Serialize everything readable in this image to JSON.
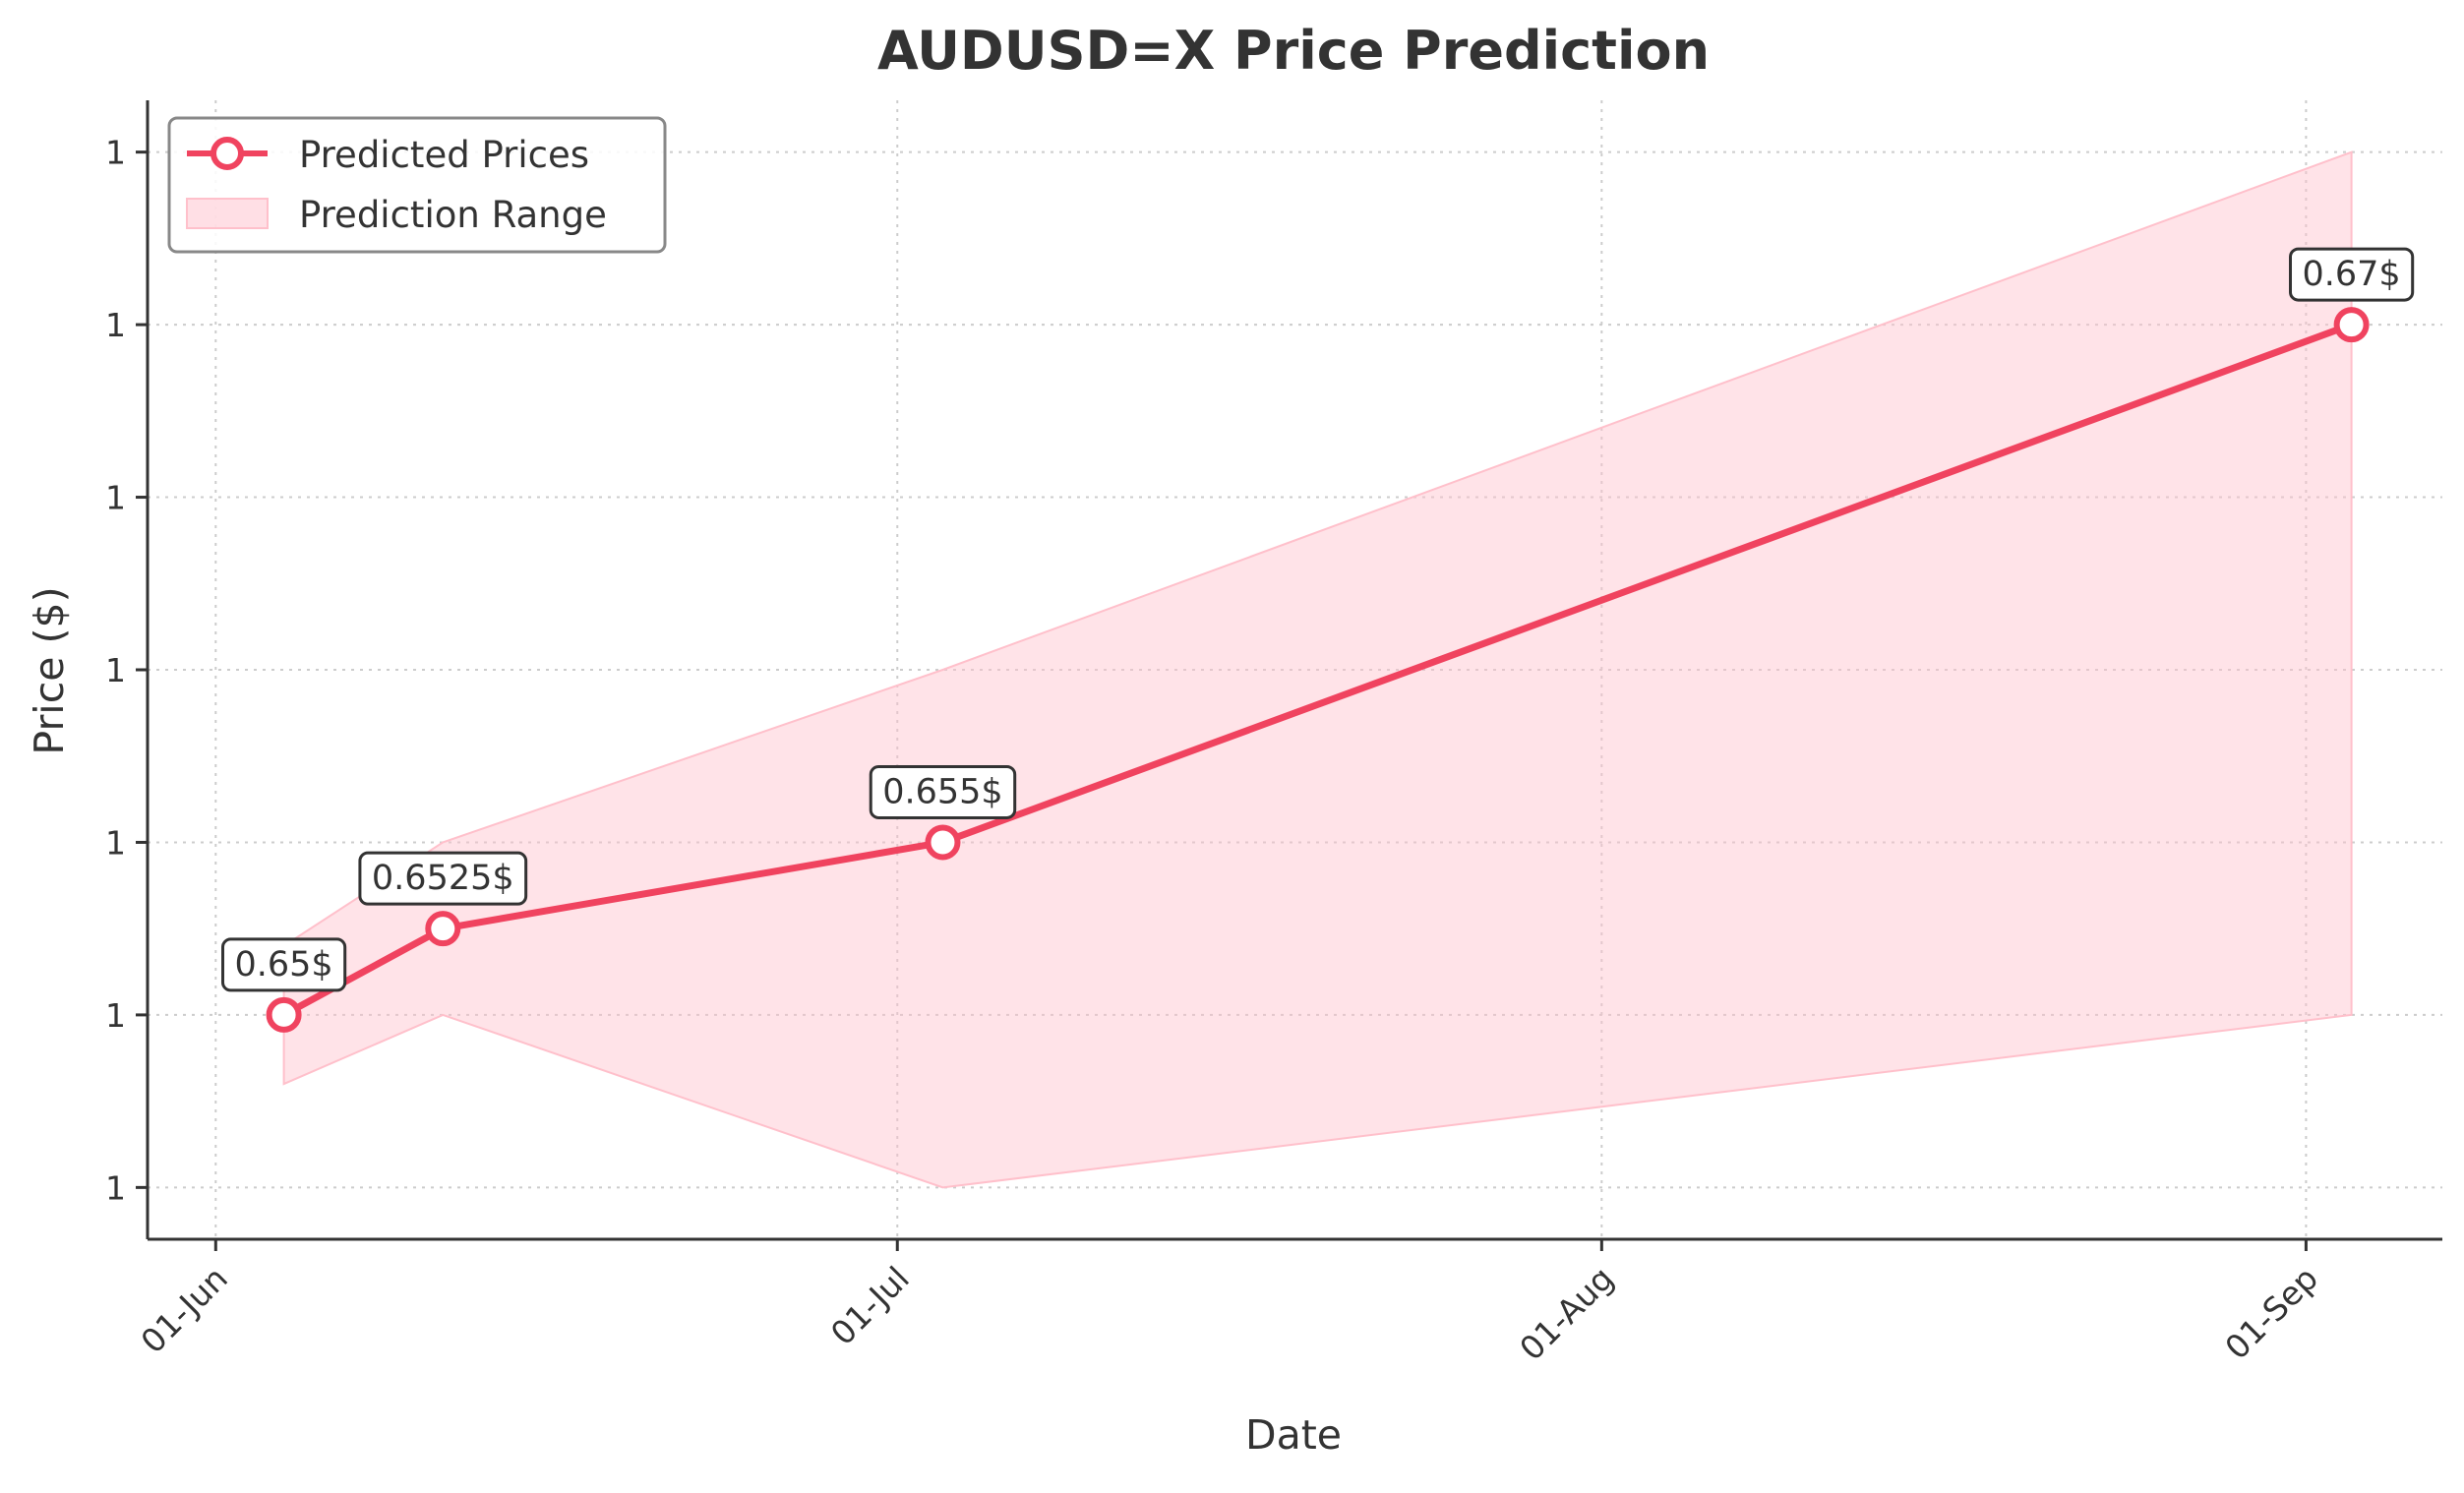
{
  "chart_data": {
    "type": "line",
    "title": "AUDUSD=X Price Prediction",
    "xlabel": "Date",
    "ylabel": "Price ($)",
    "x": [
      "2024-06-04",
      "2024-06-11",
      "2024-07-03",
      "2024-09-03"
    ],
    "series": [
      {
        "name": "Predicted Prices",
        "values": [
          0.65,
          0.6525,
          0.655,
          0.67
        ],
        "color": "#f0435f"
      }
    ],
    "range": {
      "name": "Prediction Range",
      "lower": [
        0.648,
        0.65,
        0.645,
        0.65
      ],
      "upper": [
        0.652,
        0.655,
        0.66,
        0.675
      ],
      "color": "#ffc0cb"
    },
    "point_labels": [
      "0.65$",
      "0.6525$",
      "0.655$",
      "0.67$"
    ],
    "x_ticks": [
      {
        "date": "2024-06-01",
        "label": "01-Jun"
      },
      {
        "date": "2024-07-01",
        "label": "01-Jul"
      },
      {
        "date": "2024-08-01",
        "label": "01-Aug"
      },
      {
        "date": "2024-09-01",
        "label": "01-Sep"
      }
    ],
    "y_ticks": [
      {
        "value": 0.645,
        "label": "1"
      },
      {
        "value": 0.65,
        "label": "1"
      },
      {
        "value": 0.655,
        "label": "1"
      },
      {
        "value": 0.66,
        "label": "1"
      },
      {
        "value": 0.665,
        "label": "1"
      },
      {
        "value": 0.67,
        "label": "1"
      },
      {
        "value": 0.675,
        "label": "1"
      }
    ],
    "xlim": [
      "2024-05-29",
      "2024-09-07"
    ],
    "ylim": [
      0.6435,
      0.6765
    ],
    "grid": true,
    "legend_position": "top-left",
    "colors": {
      "text": "#333333",
      "axis": "#333333",
      "grid": "#cccccc",
      "label_box_border": "#333333"
    }
  }
}
